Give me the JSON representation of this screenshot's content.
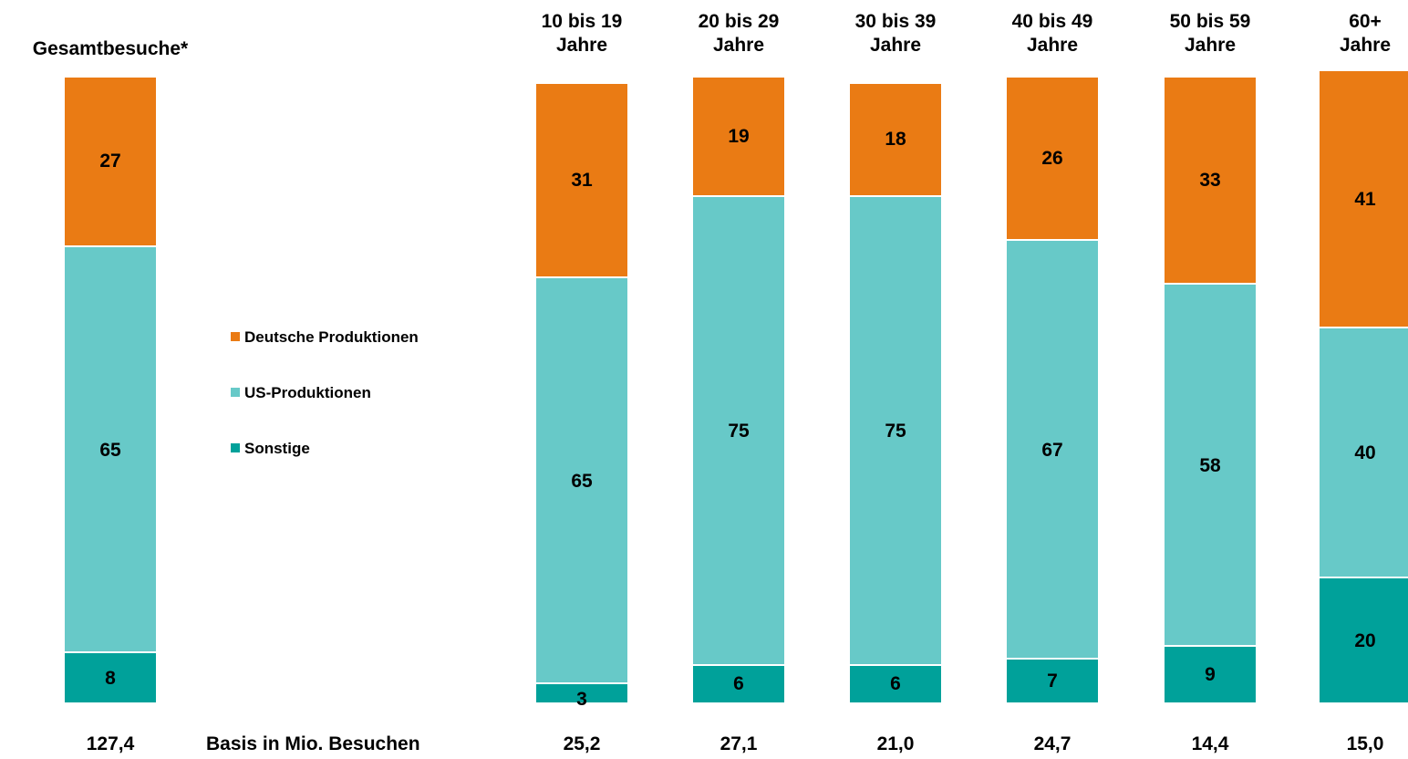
{
  "chart_data": {
    "type": "bar",
    "stacked": true,
    "categories": [
      "Gesamtbesuche*",
      "10 bis 19 Jahre",
      "20 bis 29 Jahre",
      "30 bis 39 Jahre",
      "40 bis 49 Jahre",
      "50 bis 59 Jahre",
      "60+ Jahre"
    ],
    "category_lines": [
      [
        "Gesamtbesuche*"
      ],
      [
        "10 bis 19",
        "Jahre"
      ],
      [
        "20 bis 29",
        "Jahre"
      ],
      [
        "30 bis 39",
        "Jahre"
      ],
      [
        "40 bis 49",
        "Jahre"
      ],
      [
        "50 bis 59",
        "Jahre"
      ],
      [
        "60+",
        "Jahre"
      ]
    ],
    "series": [
      {
        "name": "Sonstige",
        "color": "#00A19A",
        "values": [
          8,
          3,
          6,
          6,
          7,
          9,
          20
        ]
      },
      {
        "name": "US-Produktionen",
        "color": "#67C9C8",
        "values": [
          65,
          65,
          75,
          75,
          67,
          58,
          40
        ]
      },
      {
        "name": "Deutsche Produktionen",
        "color": "#EA7B14",
        "values": [
          27,
          31,
          19,
          18,
          26,
          33,
          41
        ]
      }
    ],
    "legend_order": [
      "Deutsche Produktionen",
      "US-Produktionen",
      "Sonstige"
    ],
    "legend_placement": "left-center",
    "base_label": "Basis in Mio. Besuchen",
    "base_values": [
      "127,4",
      "25,2",
      "27,1",
      "21,0",
      "24,7",
      "14,4",
      "15,0"
    ],
    "ylim": [
      0,
      100
    ],
    "grid": false,
    "title": "",
    "xlabel": "",
    "ylabel": ""
  }
}
